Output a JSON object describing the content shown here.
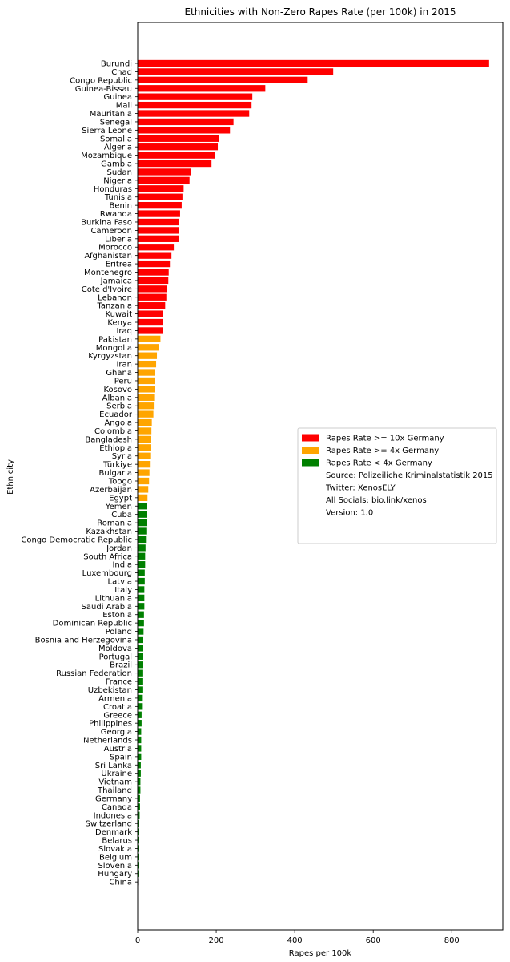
{
  "chart_data": {
    "type": "bar",
    "orientation": "horizontal",
    "title": "Ethnicities with Non-Zero Rapes Rate (per 100k) in 2015",
    "xlabel": "Rapes per 100k",
    "ylabel": "Ethnicity",
    "xlim": [
      0,
      930
    ],
    "xticks": [
      0,
      200,
      400,
      600,
      800
    ],
    "grid": false,
    "legend_position": "center-right",
    "colors": {
      "high": "#ff0000",
      "mid": "#ffa500",
      "low": "#008000"
    },
    "categories": [
      "Burundi",
      "Chad",
      "Congo Republic",
      "Guinea-Bissau",
      "Guinea",
      "Mali",
      "Mauritania",
      "Senegal",
      "Sierra Leone",
      "Somalia",
      "Algeria",
      "Mozambique",
      "Gambia",
      "Sudan",
      "Nigeria",
      "Honduras",
      "Tunisia",
      "Benin",
      "Rwanda",
      "Burkina Faso",
      "Cameroon",
      "Liberia",
      "Morocco",
      "Afghanistan",
      "Eritrea",
      "Montenegro",
      "Jamaica",
      "Cote d'Ivoire",
      "Lebanon",
      "Tanzania",
      "Kuwait",
      "Kenya",
      "Iraq",
      "Pakistan",
      "Mongolia",
      "Kyrgyzstan",
      "Iran",
      "Ghana",
      "Peru",
      "Kosovo",
      "Albania",
      "Serbia",
      "Ecuador",
      "Angola",
      "Colombia",
      "Bangladesh",
      "Ethiopia",
      "Syria",
      "Türkiye",
      "Bulgaria",
      "Toogo",
      "Azerbaijan",
      "Egypt",
      "Yemen",
      "Cuba",
      "Romania",
      "Kazakhstan",
      "Congo Democratic Republic",
      "Jordan",
      "South Africa",
      "India",
      "Luxembourg",
      "Latvia",
      "Italy",
      "Lithuania",
      "Saudi Arabia",
      "Estonia",
      "Dominican Republic",
      "Poland",
      "Bosnia and Herzegovina",
      "Moldova",
      "Portugal",
      "Brazil",
      "Russian Federation",
      "France",
      "Uzbekistan",
      "Armenia",
      "Croatia",
      "Greece",
      "Philippines",
      "Georgia",
      "Netherlands",
      "Austria",
      "Spain",
      "Sri Lanka",
      "Ukraine",
      "Vietnam",
      "Thailand",
      "Germany",
      "Canada",
      "Indonesia",
      "Switzerland",
      "Denmark",
      "Belarus",
      "Slovakia",
      "Belgium",
      "Slovenia",
      "Hungary",
      "China"
    ],
    "values": [
      895,
      498,
      433,
      325,
      292,
      290,
      284,
      244,
      235,
      206,
      204,
      196,
      188,
      135,
      132,
      117,
      114,
      112,
      108,
      106,
      105,
      104,
      92,
      86,
      82,
      79,
      78,
      75,
      73,
      70,
      65,
      64,
      64,
      58,
      55,
      49,
      47,
      44,
      43,
      43,
      42,
      41,
      40,
      36,
      35,
      34,
      33,
      32,
      31,
      30,
      29,
      27,
      25,
      24,
      24,
      23,
      22,
      21,
      20,
      19,
      19,
      18,
      18,
      17,
      17,
      17,
      16,
      16,
      15,
      14,
      14,
      13,
      13,
      12,
      12,
      12,
      11,
      11,
      10,
      10,
      9,
      9,
      9,
      9,
      8,
      8,
      7,
      7,
      6,
      6,
      5,
      4,
      4,
      4,
      4,
      3,
      3,
      2,
      1
    ],
    "color_group": [
      "high",
      "high",
      "high",
      "high",
      "high",
      "high",
      "high",
      "high",
      "high",
      "high",
      "high",
      "high",
      "high",
      "high",
      "high",
      "high",
      "high",
      "high",
      "high",
      "high",
      "high",
      "high",
      "high",
      "high",
      "high",
      "high",
      "high",
      "high",
      "high",
      "high",
      "high",
      "high",
      "high",
      "mid",
      "mid",
      "mid",
      "mid",
      "mid",
      "mid",
      "mid",
      "mid",
      "mid",
      "mid",
      "mid",
      "mid",
      "mid",
      "mid",
      "mid",
      "mid",
      "mid",
      "mid",
      "mid",
      "mid",
      "low",
      "low",
      "low",
      "low",
      "low",
      "low",
      "low",
      "low",
      "low",
      "low",
      "low",
      "low",
      "low",
      "low",
      "low",
      "low",
      "low",
      "low",
      "low",
      "low",
      "low",
      "low",
      "low",
      "low",
      "low",
      "low",
      "low",
      "low",
      "low",
      "low",
      "low",
      "low",
      "low",
      "low",
      "low",
      "low",
      "low",
      "low",
      "low",
      "low",
      "low",
      "low",
      "low",
      "low",
      "low"
    ],
    "legend": [
      {
        "label": "Rapes Rate >= 10x Germany",
        "group": "high"
      },
      {
        "label": "Rapes Rate >= 4x Germany",
        "group": "mid"
      },
      {
        "label": "Rapes Rate < 4x Germany",
        "group": "low"
      },
      {
        "label": "Source: Polizeiliche Kriminalstatistik 2015",
        "group": ""
      },
      {
        "label": "Twitter: XenosELY",
        "group": ""
      },
      {
        "label": "All Socials: bio.link/xenos",
        "group": ""
      },
      {
        "label": "Version: 1.0",
        "group": ""
      }
    ]
  }
}
